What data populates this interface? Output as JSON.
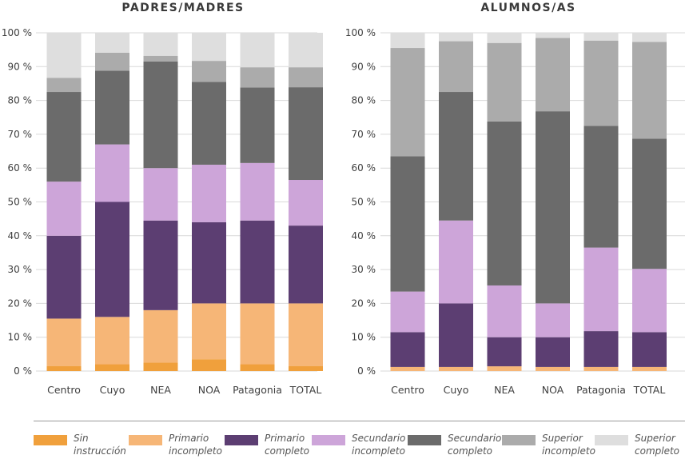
{
  "legend": [
    {
      "label": "Sin\ninstrucción",
      "color": "#f0a03c"
    },
    {
      "label": "Primario\nincompleto",
      "color": "#f6b677"
    },
    {
      "label": "Primario\ncompleto",
      "color": "#5c3e72"
    },
    {
      "label": "Secundario\nincompleto",
      "color": "#cda5d9"
    },
    {
      "label": "Secundario\ncompleto",
      "color": "#6b6b6b"
    },
    {
      "label": "Superior\nincompleto",
      "color": "#ababab"
    },
    {
      "label": "Superior\ncompleto",
      "color": "#dedede"
    }
  ],
  "chart_data": [
    {
      "type": "bar",
      "stacked": true,
      "title": "PADRES/MADRES",
      "categories": [
        "Centro",
        "Cuyo",
        "NEA",
        "NOA",
        "Patagonia",
        "TOTAL"
      ],
      "ylim": [
        0,
        100
      ],
      "yticks": [
        "0 %",
        "10 %",
        "20 %",
        "30 %",
        "40 %",
        "50 %",
        "60 %",
        "70 %",
        "80 %",
        "90 %",
        "100 %"
      ],
      "grid": true,
      "series": [
        {
          "name": "Sin instrucción",
          "values": [
            1.5,
            2.0,
            2.5,
            3.5,
            2.0,
            1.5
          ]
        },
        {
          "name": "Primario incompleto",
          "values": [
            14.0,
            14.0,
            15.5,
            16.5,
            18.0,
            18.5
          ]
        },
        {
          "name": "Primario completo",
          "values": [
            24.5,
            34.0,
            26.5,
            24.0,
            24.5,
            23.0
          ]
        },
        {
          "name": "Secundario incompleto",
          "values": [
            16.0,
            17.0,
            15.5,
            17.0,
            17.0,
            13.5
          ]
        },
        {
          "name": "Secundario completo",
          "values": [
            26.5,
            21.8,
            31.5,
            24.5,
            22.3,
            27.4
          ]
        },
        {
          "name": "Superior incompleto",
          "values": [
            4.2,
            5.3,
            1.7,
            6.2,
            6.0,
            5.9
          ]
        },
        {
          "name": "Superior completo",
          "values": [
            13.3,
            5.9,
            6.8,
            8.3,
            10.2,
            10.2
          ]
        }
      ]
    },
    {
      "type": "bar",
      "stacked": true,
      "title": "ALUMNOS/AS",
      "categories": [
        "Centro",
        "Cuyo",
        "NEA",
        "NOA",
        "Patagonia",
        "TOTAL"
      ],
      "ylim": [
        0,
        100
      ],
      "yticks": [
        "0 %",
        "10 %",
        "20 %",
        "30 %",
        "40 %",
        "50 %",
        "60 %",
        "70 %",
        "80 %",
        "90 %",
        "100 %"
      ],
      "grid": true,
      "series": [
        {
          "name": "Sin instrucción",
          "values": [
            0,
            0,
            0,
            0,
            0,
            0
          ]
        },
        {
          "name": "Primario incompleto",
          "values": [
            1.2,
            1.2,
            1.4,
            1.2,
            1.2,
            1.2
          ]
        },
        {
          "name": "Primario completo",
          "values": [
            10.3,
            18.8,
            8.6,
            8.8,
            10.6,
            10.3
          ]
        },
        {
          "name": "Secundario incompleto",
          "values": [
            12.0,
            24.5,
            15.3,
            10.0,
            24.7,
            18.7
          ]
        },
        {
          "name": "Secundario completo",
          "values": [
            40.0,
            38.0,
            48.5,
            56.8,
            36.0,
            38.5
          ]
        },
        {
          "name": "Superior incompleto",
          "values": [
            32.0,
            15.0,
            23.2,
            21.7,
            25.2,
            28.6
          ]
        },
        {
          "name": "Superior completo",
          "values": [
            4.5,
            2.5,
            3.0,
            1.5,
            2.3,
            2.7
          ]
        }
      ]
    }
  ]
}
